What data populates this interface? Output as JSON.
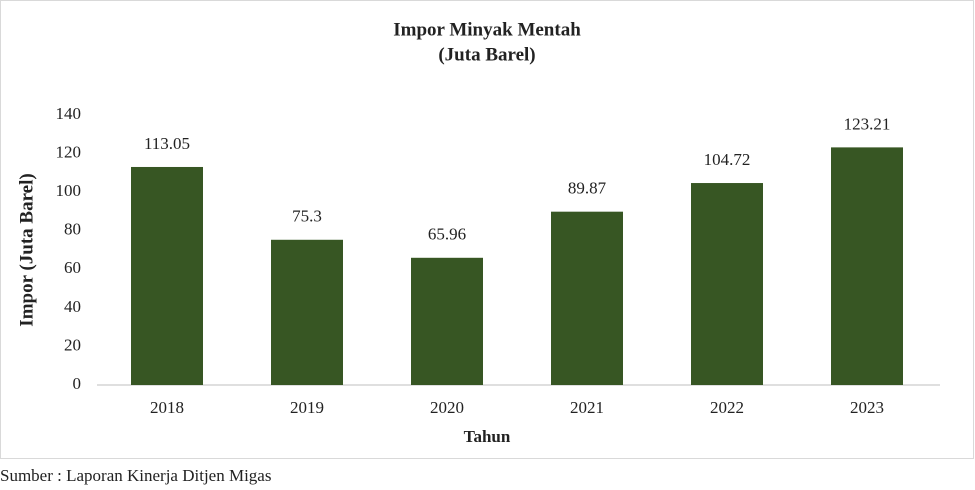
{
  "chart_data": {
    "type": "bar",
    "title": [
      "Impor Minyak Mentah",
      "(Juta Barel)"
    ],
    "x_label": "Tahun",
    "y_label": "Impor (Juta Barel)",
    "categories": [
      "2018",
      "2019",
      "2020",
      "2021",
      "2022",
      "2023"
    ],
    "values": [
      113.05,
      75.3,
      65.96,
      89.87,
      104.72,
      123.21
    ],
    "color": "#375623",
    "ylim": [
      0,
      140
    ],
    "yticks": [
      0,
      20,
      40,
      60,
      80,
      100,
      120,
      140
    ],
    "grid": false,
    "source": "Sumber : Laporan Kinerja Ditjen Migas"
  }
}
